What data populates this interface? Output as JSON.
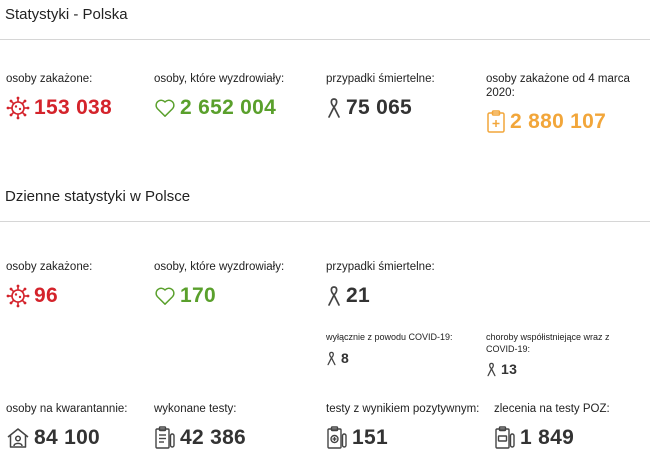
{
  "poland": {
    "title": "Statystyki - Polska",
    "infected_label": "osoby zakażone:",
    "infected_value": "153 038",
    "recovered_label": "osoby, które wyzdrowiały:",
    "recovered_value": "2 652 004",
    "deaths_label": "przypadki śmiertelne:",
    "deaths_value": "75 065",
    "since_label": "osoby zakażone od 4 marca 2020:",
    "since_value": "2 880 107"
  },
  "daily": {
    "title": "Dzienne statystyki w Polsce",
    "infected_label": "osoby zakażone:",
    "infected_value": "96",
    "recovered_label": "osoby, które wyzdrowiały:",
    "recovered_value": "170",
    "deaths_label": "przypadki śmiertelne:",
    "deaths_value": "21",
    "covid_only_label": "wyłącznie z powodu COVID-19:",
    "covid_only_value": "8",
    "comorbid_label": "choroby współistniejące wraz z COVID-19:",
    "comorbid_value": "13",
    "quarantine_label": "osoby na kwarantannie:",
    "quarantine_value": "84 100",
    "tests_label": "wykonane testy:",
    "tests_value": "42 386",
    "positive_label": "testy z wynikiem pozytywnym:",
    "positive_value": "151",
    "poz_label": "zlecenia na testy POZ:",
    "poz_value": "1 849"
  },
  "colors": {
    "infected": "#d4232b",
    "recovered": "#5aa02c",
    "neutral": "#333333",
    "total": "#f2a63a",
    "divider": "#d6d6d6"
  },
  "icons": {
    "infected": "virus-icon",
    "recovered": "heart-icon",
    "deaths": "ribbon-icon",
    "total": "clipboard-icon",
    "quarantine": "house-person-icon",
    "tests": "test-list-icon",
    "positive": "positive-test-icon",
    "poz": "poz-test-icon"
  }
}
